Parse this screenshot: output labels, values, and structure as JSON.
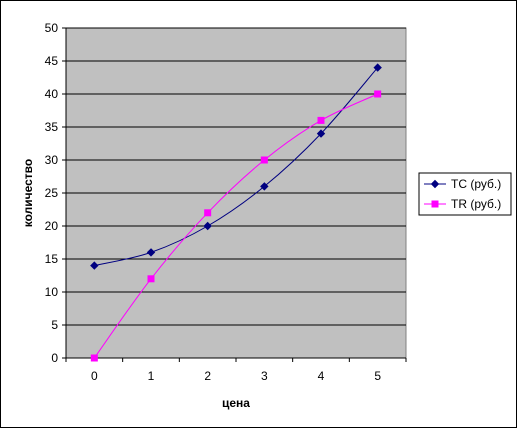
{
  "chart_data": {
    "type": "line",
    "title": "",
    "xlabel": "цена",
    "ylabel": "количество",
    "x": [
      0,
      1,
      2,
      3,
      4,
      5
    ],
    "ylim": [
      0,
      50
    ],
    "yticks": [
      0,
      5,
      10,
      15,
      20,
      25,
      30,
      35,
      40,
      45,
      50
    ],
    "grid": true,
    "plot_background": "#c0c0c0",
    "legend_position": "right",
    "series": [
      {
        "name": "TC (руб.)",
        "values": [
          14,
          16,
          20,
          26,
          34,
          44
        ],
        "color": "#000080",
        "marker": "diamond"
      },
      {
        "name": "TR (руб.)",
        "values": [
          0,
          12,
          22,
          30,
          36,
          40
        ],
        "color": "#ff00ff",
        "marker": "square"
      }
    ]
  }
}
